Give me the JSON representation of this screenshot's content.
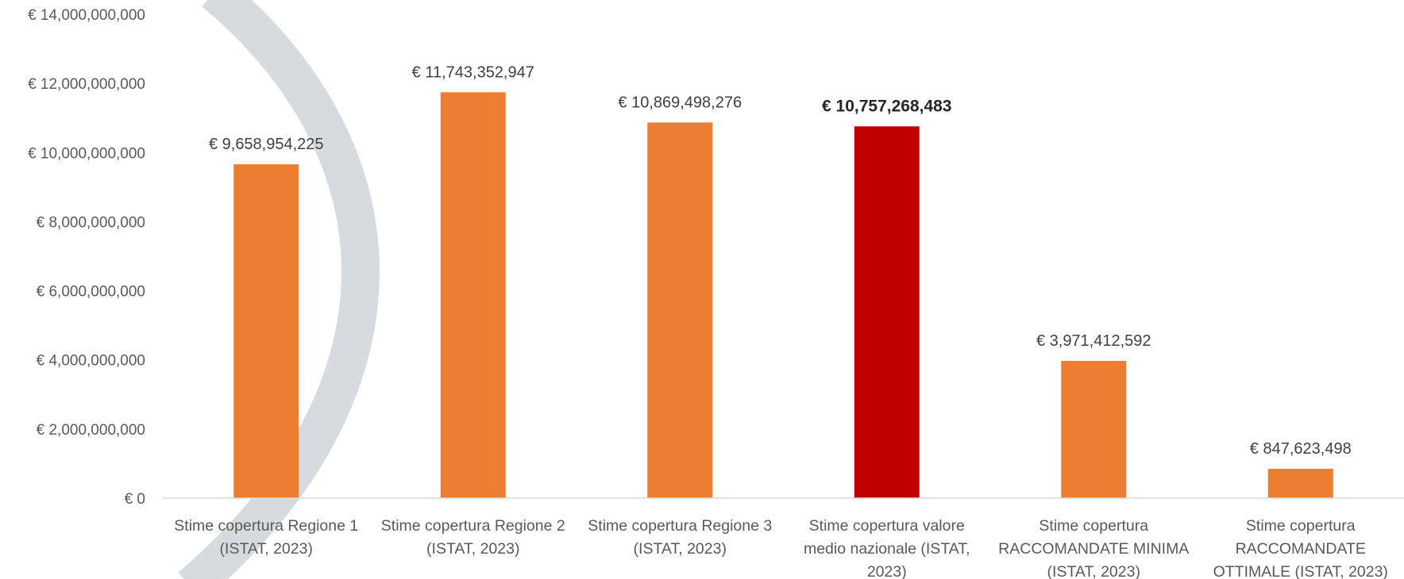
{
  "chart_data": {
    "type": "bar",
    "title": "",
    "xlabel": "",
    "ylabel": "",
    "ylim": [
      0,
      14000000000
    ],
    "yticks": [
      0,
      2000000000,
      4000000000,
      6000000000,
      8000000000,
      10000000000,
      12000000000,
      14000000000
    ],
    "ytick_labels": [
      "€ 0",
      "€ 2,000,000,000",
      "€ 4,000,000,000",
      "€ 6,000,000,000",
      "€ 8,000,000,000",
      "€ 10,000,000,000",
      "€ 12,000,000,000",
      "€ 14,000,000,000"
    ],
    "grid": false,
    "legend": "none",
    "categories": [
      [
        "Stime copertura Regione 1",
        "(ISTAT, 2023)"
      ],
      [
        "Stime copertura Regione 2",
        "(ISTAT, 2023)"
      ],
      [
        "Stime copertura Regione 3",
        "(ISTAT, 2023)"
      ],
      [
        "Stime copertura valore",
        "medio nazionale (ISTAT,",
        "2023)"
      ],
      [
        "Stime copertura",
        "RACCOMANDATE MINIMA",
        "(ISTAT, 2023)"
      ],
      [
        "Stime copertura",
        "RACCOMANDATE",
        "OTTIMALE (ISTAT, 2023)"
      ]
    ],
    "values": [
      9658954225,
      11743352947,
      10869498276,
      10757268483,
      3971412592,
      847623498
    ],
    "data_labels": [
      "€ 9,658,954,225",
      "€ 11,743,352,947",
      "€ 10,869,498,276",
      "€ 10,757,268,483",
      "€ 3,971,412,592",
      "€ 847,623,498"
    ],
    "highlight_index": 3,
    "colors": {
      "bar": "#ED7D31",
      "highlight": "#C00000",
      "axis": "#D9D9D9",
      "background_arc": "#D5DBDE"
    }
  }
}
